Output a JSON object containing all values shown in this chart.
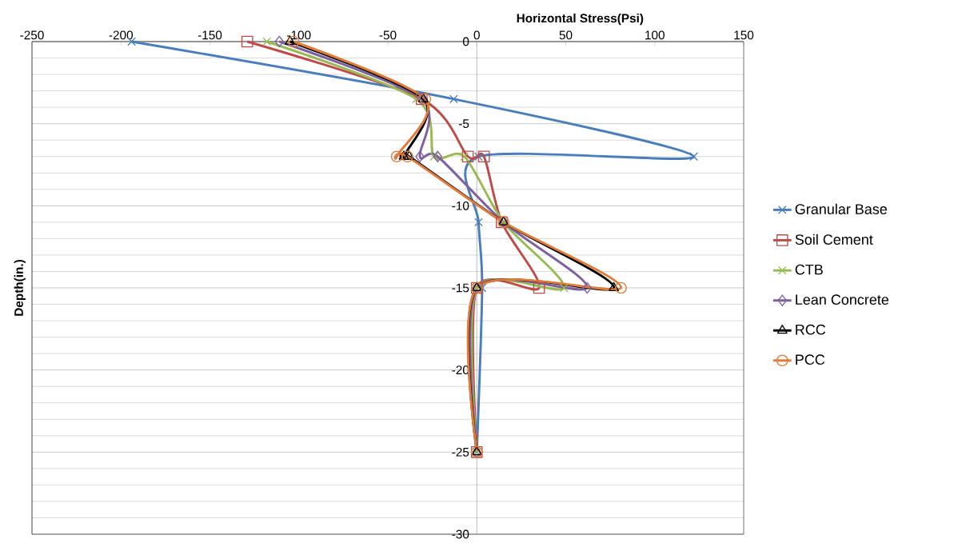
{
  "chart_data": {
    "type": "line",
    "xlabel": "Horizontal Stress(Psi)",
    "ylabel": "Depth(in.)",
    "xlim": [
      -250,
      150
    ],
    "ylim": [
      -30,
      0
    ],
    "xticks": [
      -250,
      -200,
      -150,
      -100,
      -50,
      0,
      50,
      100,
      150
    ],
    "yticks": [
      -30,
      -25,
      -20,
      -15,
      -10,
      -5,
      0
    ],
    "grid": "y",
    "legend": "right",
    "series": [
      {
        "name": "Granular Base",
        "color": "#4a7ebb",
        "marker": "cross",
        "x": [
          -194,
          -13,
          122,
          1,
          1,
          3,
          0
        ],
        "values": [
          0,
          -3.5,
          -7,
          -7,
          -11,
          -15,
          -25
        ]
      },
      {
        "name": "Soil Cement",
        "color": "#be4b48",
        "marker": "square",
        "x": [
          -129,
          -31,
          -5,
          4,
          14,
          35,
          0,
          0
        ],
        "values": [
          0,
          -3.5,
          -7,
          -7,
          -11,
          -15,
          -15,
          -25
        ]
      },
      {
        "name": "CTB",
        "color": "#98b954",
        "marker": "cross",
        "x": [
          -118,
          -34,
          -24,
          -7,
          15,
          49,
          0,
          0
        ],
        "values": [
          0,
          -3.5,
          -7,
          -7,
          -11,
          -15,
          -15,
          -25
        ]
      },
      {
        "name": "Lean Concrete",
        "color": "#7d60a0",
        "marker": "diamond",
        "x": [
          -111,
          -31,
          -32,
          -22,
          15,
          62,
          0,
          0
        ],
        "values": [
          0,
          -3.5,
          -7,
          -7,
          -11,
          -15,
          -15,
          -25
        ]
      },
      {
        "name": "RCC",
        "color": "#000000",
        "marker": "triangle",
        "x": [
          -105,
          -30,
          -41,
          -38,
          15,
          77,
          0,
          0
        ],
        "values": [
          0,
          -3.5,
          -7,
          -7,
          -11,
          -15,
          -15,
          -25
        ]
      },
      {
        "name": "PCC",
        "color": "#e07b39",
        "marker": "circle",
        "x": [
          -103,
          -29,
          -45,
          -39,
          15,
          81,
          0,
          0
        ],
        "values": [
          0,
          -3.5,
          -7,
          -7,
          -11,
          -15,
          -15,
          -25
        ]
      }
    ]
  }
}
